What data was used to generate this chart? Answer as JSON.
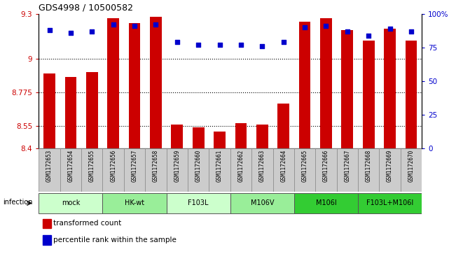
{
  "title": "GDS4998 / 10500582",
  "samples": [
    "GSM1172653",
    "GSM1172654",
    "GSM1172655",
    "GSM1172656",
    "GSM1172657",
    "GSM1172658",
    "GSM1172659",
    "GSM1172660",
    "GSM1172661",
    "GSM1172662",
    "GSM1172663",
    "GSM1172664",
    "GSM1172665",
    "GSM1172666",
    "GSM1172667",
    "GSM1172668",
    "GSM1172669",
    "GSM1172670"
  ],
  "bar_values": [
    8.9,
    8.88,
    8.91,
    9.27,
    9.24,
    9.28,
    8.56,
    8.54,
    8.515,
    8.57,
    8.56,
    8.7,
    9.25,
    9.27,
    9.19,
    9.12,
    9.2,
    9.12
  ],
  "blue_values": [
    88,
    86,
    87,
    92,
    91,
    92,
    79,
    77,
    77,
    77,
    76,
    79,
    90,
    91,
    87,
    84,
    89,
    87
  ],
  "bar_color": "#cc0000",
  "blue_color": "#0000cc",
  "ylim_left": [
    8.4,
    9.3
  ],
  "ylim_right": [
    0,
    100
  ],
  "yticks_left": [
    8.4,
    8.55,
    8.775,
    9.0,
    9.3
  ],
  "yticks_right": [
    0,
    25,
    50,
    75,
    100
  ],
  "ytick_labels_left": [
    "8.4",
    "8.55",
    "8.775",
    "9",
    "9.3"
  ],
  "ytick_labels_right": [
    "0",
    "25",
    "50",
    "75",
    "100%"
  ],
  "gridlines": [
    9.0,
    8.775,
    8.55
  ],
  "groups": [
    {
      "label": "mock",
      "start": 0,
      "end": 3,
      "color": "#ccffcc"
    },
    {
      "label": "HK-wt",
      "start": 3,
      "end": 6,
      "color": "#99ee99"
    },
    {
      "label": "F103L",
      "start": 6,
      "end": 9,
      "color": "#ccffcc"
    },
    {
      "label": "M106V",
      "start": 9,
      "end": 12,
      "color": "#99ee99"
    },
    {
      "label": "M106I",
      "start": 12,
      "end": 15,
      "color": "#33cc33"
    },
    {
      "label": "F103L+M106I",
      "start": 15,
      "end": 18,
      "color": "#33cc33"
    }
  ],
  "infection_label": "infection",
  "legend_items": [
    {
      "color": "#cc0000",
      "label": "transformed count"
    },
    {
      "color": "#0000cc",
      "label": "percentile rank within the sample"
    }
  ],
  "bar_width": 0.55,
  "sample_box_color": "#cccccc",
  "sample_box_edge": "#888888"
}
